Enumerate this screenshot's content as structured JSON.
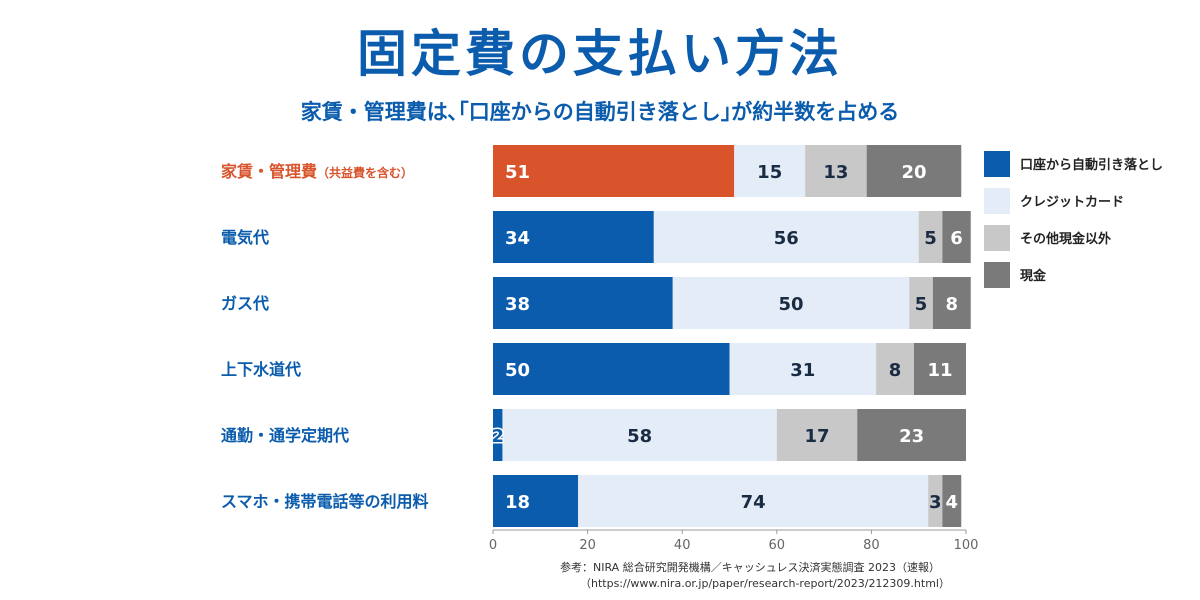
{
  "title": "固定費の支払い方法",
  "subtitle": "家賃・管理費は､｢口座からの自動引き落とし｣が約半数を占める",
  "source": {
    "line1": "参考：NIRA 総合研究開発機構／キャッシュレス決済実態調査 2023（速報）",
    "line2": "（https://www.nira.or.jp/paper/research-report/2023/212309.html）"
  },
  "colors": {
    "auto_debit": "#0b5cad",
    "highlight": "#d9542b",
    "credit_card": "#e4edf7",
    "other_non_cash": "#c8c8c8",
    "cash": "#7a7a7a"
  },
  "chart_data": {
    "type": "bar",
    "orientation": "horizontal",
    "stacked": true,
    "categories": [
      "家賃・管理費",
      "電気代",
      "ガス代",
      "上下水道代",
      "通勤・通学定期代",
      "スマホ・携帯電話等の利用料"
    ],
    "category_notes": [
      "（共益費を含む）",
      "",
      "",
      "",
      "",
      ""
    ],
    "series": [
      {
        "name": "口座から自動引き落とし",
        "values": [
          51,
          34,
          38,
          50,
          2,
          18
        ]
      },
      {
        "name": "クレジットカード",
        "values": [
          15,
          56,
          50,
          31,
          58,
          74
        ]
      },
      {
        "name": "その他現金以外",
        "values": [
          13,
          5,
          5,
          8,
          17,
          3
        ]
      },
      {
        "name": "現金",
        "values": [
          20,
          6,
          8,
          11,
          23,
          4
        ]
      }
    ],
    "xlim": [
      0,
      100
    ],
    "xticks": [
      0,
      20,
      40,
      60,
      80,
      100
    ],
    "highlight_category": 0,
    "legend_position": "right",
    "grid": false
  }
}
